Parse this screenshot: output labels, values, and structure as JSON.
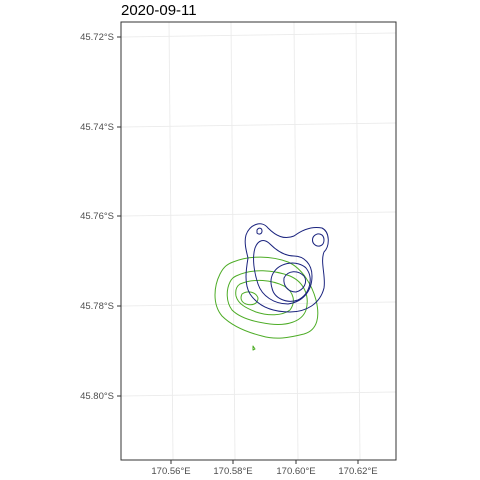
{
  "map": {
    "title": "2020-09-11",
    "lat_ticks": [
      "45.72°S",
      "45.74°S",
      "45.76°S",
      "45.78°S",
      "45.80°S"
    ],
    "lon_ticks": [
      "170.56°E",
      "170.58°E",
      "170.60°E",
      "170.62°E"
    ],
    "colors": {
      "panel_border": "#333333",
      "gridline": "#ebebeb",
      "contour_green": "#4dac26",
      "contour_navy": "#1a237e"
    },
    "contour_sets": [
      {
        "name": "green",
        "levels": 4
      },
      {
        "name": "navy",
        "levels": 4
      }
    ]
  }
}
